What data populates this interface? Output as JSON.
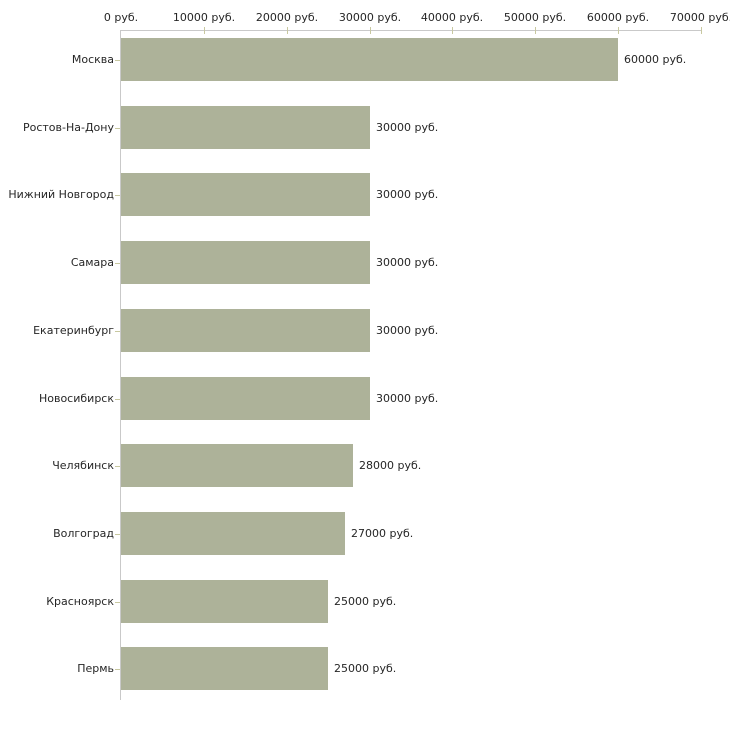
{
  "chart_data": {
    "type": "bar",
    "orientation": "horizontal",
    "title": "",
    "xlabel": "",
    "ylabel": "",
    "grid": false,
    "legend": false,
    "xlim": [
      0,
      70000
    ],
    "x_tick_values": [
      0,
      10000,
      20000,
      30000,
      40000,
      50000,
      60000,
      70000
    ],
    "x_tick_labels": [
      "0 руб.",
      "10000 руб.",
      "20000 руб.",
      "30000 руб.",
      "40000 руб.",
      "50000 руб.",
      "60000 руб.",
      "70000 руб."
    ],
    "categories": [
      "Москва",
      "Ростов-На-Дону",
      "Нижний Новгород",
      "Самара",
      "Екатеринбург",
      "Новосибирск",
      "Челябинск",
      "Волгоград",
      "Красноярск",
      "Пермь"
    ],
    "values": [
      60000,
      30000,
      30000,
      30000,
      30000,
      30000,
      28000,
      27000,
      25000,
      25000
    ],
    "value_labels": [
      "60000 руб.",
      "30000 руб.",
      "30000 руб.",
      "30000 руб.",
      "30000 руб.",
      "30000 руб.",
      "28000 руб.",
      "27000 руб.",
      "25000 руб.",
      "25000 руб."
    ],
    "colors": {
      "bar": "#adb299",
      "axis_line": "#c9c9c9",
      "tick_mark": "#c8c8a0",
      "text": "#262626",
      "background": "#ffffff"
    }
  }
}
